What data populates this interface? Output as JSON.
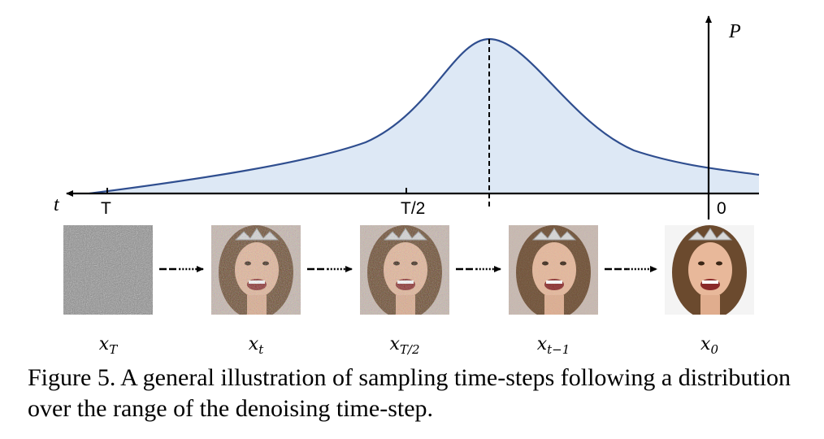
{
  "axis": {
    "time_label": "t",
    "prob_label": "P",
    "ticks": {
      "T": "T",
      "half": "T/2",
      "zero": "0"
    }
  },
  "images": [
    {
      "label": "x",
      "sub": "T",
      "kind": "pure-noise-icon",
      "noise": 1.0
    },
    {
      "label": "x",
      "sub": "t",
      "kind": "noisy-face-icon",
      "noise": 0.6
    },
    {
      "label": "x",
      "sub": "T/2",
      "kind": "noisy-face-icon",
      "noise": 0.55
    },
    {
      "label": "x",
      "sub": "t−1",
      "kind": "noisy-face-icon",
      "noise": 0.3
    },
    {
      "label": "x",
      "sub": "0",
      "kind": "clean-face-icon",
      "noise": 0.0
    }
  ],
  "colors": {
    "curve": "#2f4e8f",
    "fill": "#dde8f5",
    "axis": "#000000"
  },
  "caption": {
    "prefix": "Figure 5.",
    "text": " A general illustration of sampling time-steps following a distribution over the range of the denoising time-step."
  }
}
